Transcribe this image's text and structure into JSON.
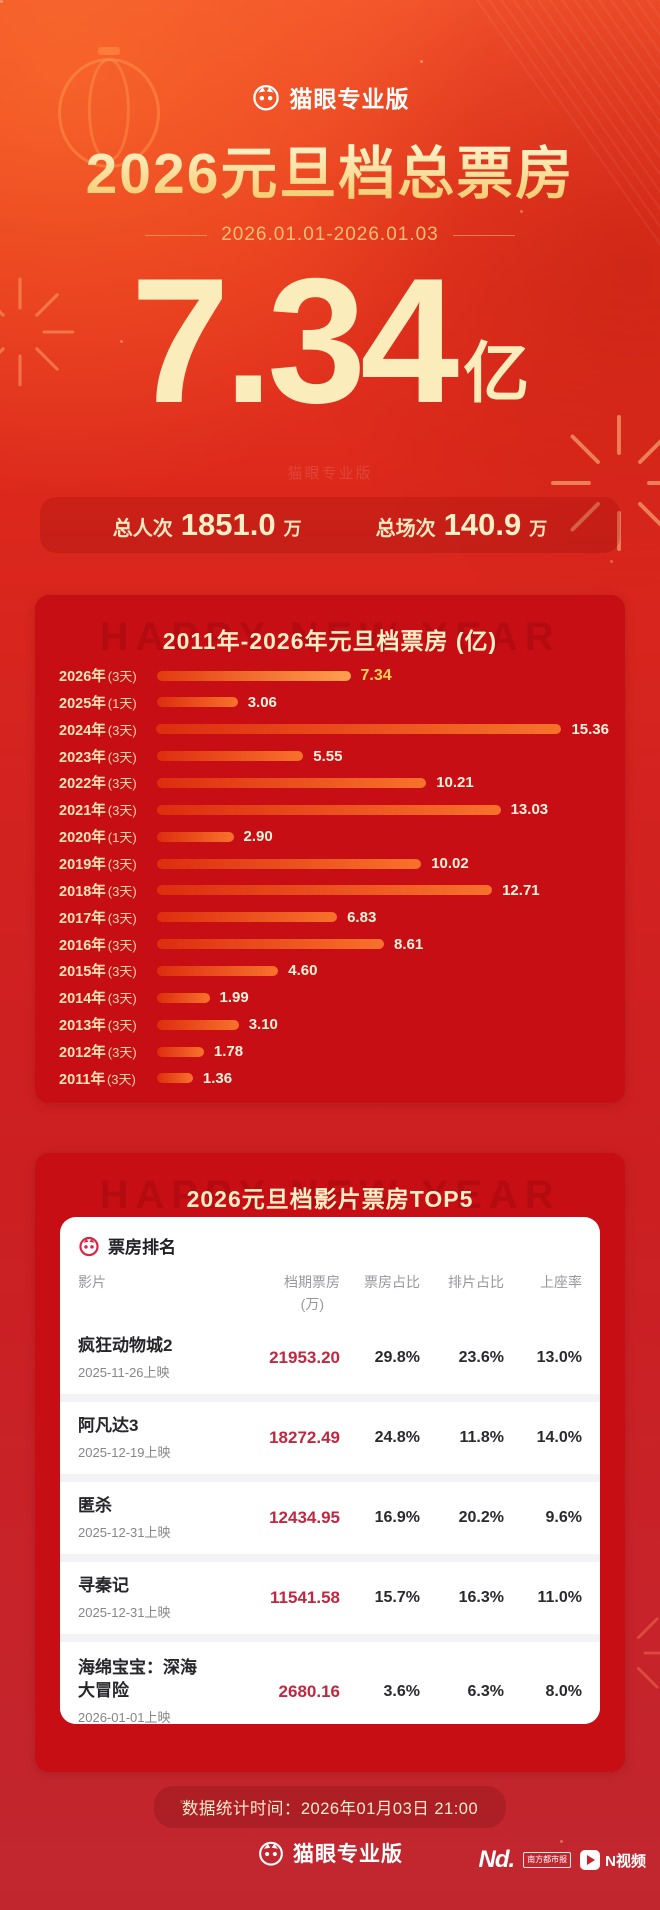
{
  "brand": {
    "name": "猫眼专业版"
  },
  "header": {
    "title": "2026元旦档总票房",
    "date_range": "2026.01.01-2026.01.03"
  },
  "total": {
    "value": "7.34",
    "unit": "亿",
    "watermark": "猫眼专业版"
  },
  "stats": [
    {
      "label": "总人次",
      "value": "1851.0",
      "unit": "万"
    },
    {
      "label": "总场次",
      "value": "140.9",
      "unit": "万"
    }
  ],
  "watermark": {
    "text": "HAPPY NEW YEAR"
  },
  "chart_data": {
    "type": "bar",
    "orientation": "horizontal",
    "title": "2011年-2026年元旦档票房 (亿)",
    "categories": [
      "2026年 (3天)",
      "2025年 (1天)",
      "2024年 (3天)",
      "2023年 (3天)",
      "2022年 (3天)",
      "2021年 (3天)",
      "2020年 (1天)",
      "2019年 (3天)",
      "2018年 (3天)",
      "2017年 (3天)",
      "2016年 (3天)",
      "2015年 (3天)",
      "2014年 (3天)",
      "2013年 (3天)",
      "2012年 (3天)",
      "2011年 (3天)"
    ],
    "values": [
      7.34,
      3.06,
      15.36,
      5.55,
      10.21,
      13.03,
      2.9,
      10.02,
      12.71,
      6.83,
      8.61,
      4.6,
      1.99,
      3.1,
      1.78,
      1.36
    ],
    "value_labels": [
      "7.34",
      "3.06",
      "15.36",
      "5.55",
      "10.21",
      "13.03",
      "2.90",
      "10.02",
      "12.71",
      "6.83",
      "8.61",
      "4.60",
      "1.99",
      "3.10",
      "1.78",
      "1.36"
    ],
    "highlight_index": 0,
    "xlim": [
      0,
      15.36
    ],
    "grid": false,
    "legend": false
  },
  "top5": {
    "title": "2026元旦档影片票房TOP5",
    "panel_title": "票房排名",
    "columns": [
      "影片",
      "档期票房",
      "票房占比",
      "排片占比",
      "上座率"
    ],
    "box_unit": "(万)",
    "rows": [
      {
        "film": "疯狂动物城2",
        "release": "2025-11-26上映",
        "box": "21953.20",
        "box_share": "29.8%",
        "screen_share": "23.6%",
        "attendance": "13.0%"
      },
      {
        "film": "阿凡达3",
        "release": "2025-12-19上映",
        "box": "18272.49",
        "box_share": "24.8%",
        "screen_share": "11.8%",
        "attendance": "14.0%"
      },
      {
        "film": "匿杀",
        "release": "2025-12-31上映",
        "box": "12434.95",
        "box_share": "16.9%",
        "screen_share": "20.2%",
        "attendance": "9.6%"
      },
      {
        "film": "寻秦记",
        "release": "2025-12-31上映",
        "box": "11541.58",
        "box_share": "15.7%",
        "screen_share": "16.3%",
        "attendance": "11.0%"
      },
      {
        "film": "海绵宝宝：深海大冒险",
        "release": "2026-01-01上映",
        "box": "2680.16",
        "box_share": "3.6%",
        "screen_share": "6.3%",
        "attendance": "8.0%"
      }
    ]
  },
  "footer": {
    "data_time": "数据统计时间：2026年01月03日 21:00",
    "partners": {
      "nd_logo": "Nd.",
      "nd_paper": "南方都市报",
      "nvideo": "N视频"
    }
  },
  "colors": {
    "background_top": "#F2512B",
    "background_bottom": "#C1262F",
    "card_red": "#C60E14",
    "gold": "#FFD456",
    "cream": "#FAEDBB",
    "bar_gradient": [
      "#DD2D10",
      "#F8722B"
    ],
    "highlight_bar_gradient": [
      "#E23A10",
      "#FFA14E"
    ],
    "table_value_red": "#C22740"
  }
}
